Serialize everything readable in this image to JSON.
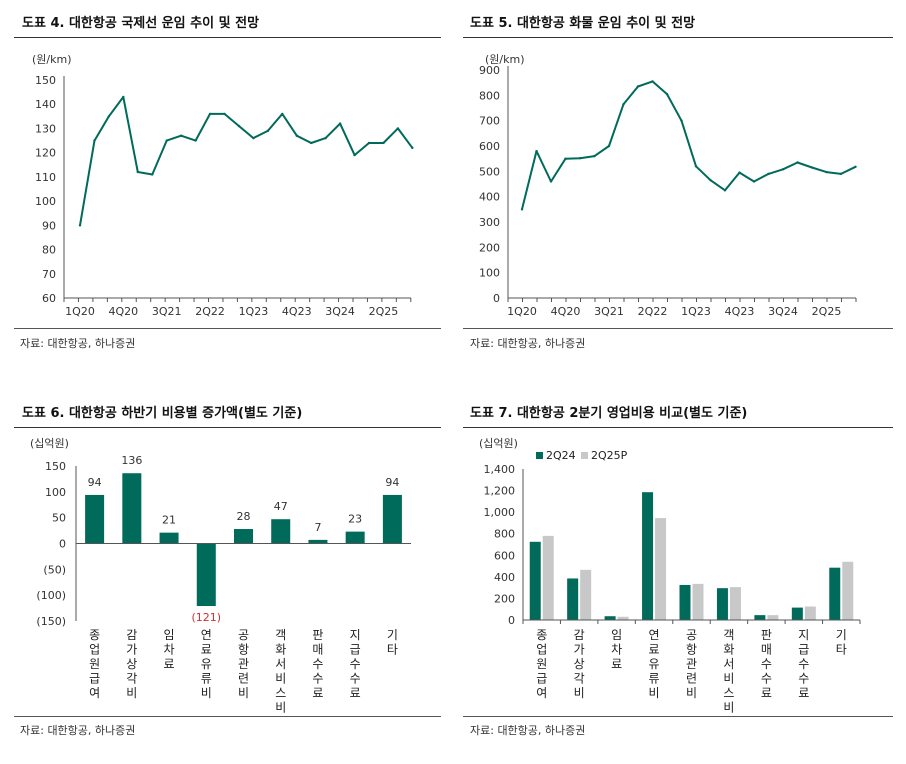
{
  "colors": {
    "primary": "#006a5b",
    "secondary": "#c8c8c8",
    "negative": "#d03030"
  },
  "panels": [
    {
      "title": "도표 4. 대한항공 국제선 운임 추이 및 전망",
      "source": "자료: 대한항공, 하나증권",
      "chart_data": {
        "type": "line",
        "unit": "(원/km)",
        "ylim": [
          60,
          150
        ],
        "yticks": [
          "150",
          "140",
          "130",
          "120",
          "110",
          "100",
          "90",
          "80",
          "70",
          "60"
        ],
        "x": [
          "1Q20",
          "2Q20",
          "3Q20",
          "4Q20",
          "1Q21",
          "2Q21",
          "3Q21",
          "4Q21",
          "1Q22",
          "2Q22",
          "3Q22",
          "4Q22",
          "1Q23",
          "2Q23",
          "3Q23",
          "4Q23",
          "1Q24",
          "2Q24",
          "3Q24",
          "4Q24",
          "1Q25",
          "2Q25",
          "3Q25",
          "4Q25"
        ],
        "xticklabels": [
          "1Q20",
          "4Q20",
          "3Q21",
          "2Q22",
          "1Q23",
          "4Q23",
          "3Q24",
          "2Q25"
        ],
        "series": [
          {
            "values": [
              90,
              125,
              135,
              143,
              112,
              111,
              125,
              127,
              125,
              136,
              136,
              131,
              126,
              129,
              136,
              127,
              124,
              126,
              132,
              119,
              124,
              124,
              130,
              122
            ]
          }
        ]
      }
    },
    {
      "title": "도표 5. 대한항공 화물 운임 추이 및 전망",
      "source": "자료: 대한항공, 하나증권",
      "chart_data": {
        "type": "line",
        "unit": "(원/km)",
        "ylim": [
          0,
          900
        ],
        "yticks": [
          "900",
          "800",
          "700",
          "600",
          "500",
          "400",
          "300",
          "200",
          "100",
          "0"
        ],
        "x": [
          "1Q20",
          "2Q20",
          "3Q20",
          "4Q20",
          "1Q21",
          "2Q21",
          "3Q21",
          "4Q21",
          "1Q22",
          "2Q22",
          "3Q22",
          "4Q22",
          "1Q23",
          "2Q23",
          "3Q23",
          "4Q23",
          "1Q24",
          "2Q24",
          "3Q24",
          "4Q24",
          "1Q25",
          "2Q25",
          "3Q25",
          "4Q25"
        ],
        "xticklabels": [
          "1Q20",
          "4Q20",
          "3Q21",
          "2Q22",
          "1Q23",
          "4Q23",
          "3Q24",
          "2Q25"
        ],
        "series": [
          {
            "values": [
              350,
              580,
              460,
              550,
              552,
              560,
              600,
              765,
              835,
              855,
              805,
              700,
              520,
              465,
              425,
              495,
              460,
              490,
              508,
              535,
              515,
              497,
              490,
              518
            ]
          }
        ]
      }
    },
    {
      "title": "도표 6. 대한항공 하반기 비용별 증가액(별도 기준)",
      "source": "자료: 대한항공, 하나증권",
      "chart_data": {
        "type": "bar",
        "unit": "(십억원)",
        "ylim": [
          -150,
          150
        ],
        "yticks": [
          "150",
          "100",
          "50",
          "0",
          "(50)",
          "(100)",
          "(150)"
        ],
        "categories": [
          "종업원급여",
          "감가상각비",
          "임차료",
          "연료유류비",
          "공항관련비",
          "객화서비스비",
          "판매수수료",
          "지급수수료",
          "기타"
        ],
        "values": [
          94,
          136,
          21,
          -121,
          28,
          47,
          7,
          23,
          94
        ],
        "data_labels": [
          "94",
          "136",
          "21",
          "(121)",
          "28",
          "47",
          "7",
          "23",
          "94"
        ]
      }
    },
    {
      "title": "도표 7. 대한항공 2분기 영업비용 비교(별도 기준)",
      "source": "자료: 대한항공, 하나증권",
      "chart_data": {
        "type": "bar",
        "unit": "(십억원)",
        "ylim": [
          0,
          1400
        ],
        "yticks": [
          "1,400",
          "1,200",
          "1,000",
          "800",
          "600",
          "400",
          "200",
          "0"
        ],
        "legend_position": "top-left",
        "categories": [
          "종업원급여",
          "감가상각비",
          "임차료",
          "연료유류비",
          "공항관련비",
          "객화서비스비",
          "판매수수료",
          "지급수수료",
          "기타"
        ],
        "series": [
          {
            "name": "2Q24",
            "values": [
              725,
              385,
              35,
              1185,
              325,
              295,
              45,
              115,
              485
            ]
          },
          {
            "name": "2Q25P",
            "values": [
              780,
              465,
              30,
              945,
              335,
              305,
              45,
              125,
              540
            ]
          }
        ]
      }
    }
  ]
}
